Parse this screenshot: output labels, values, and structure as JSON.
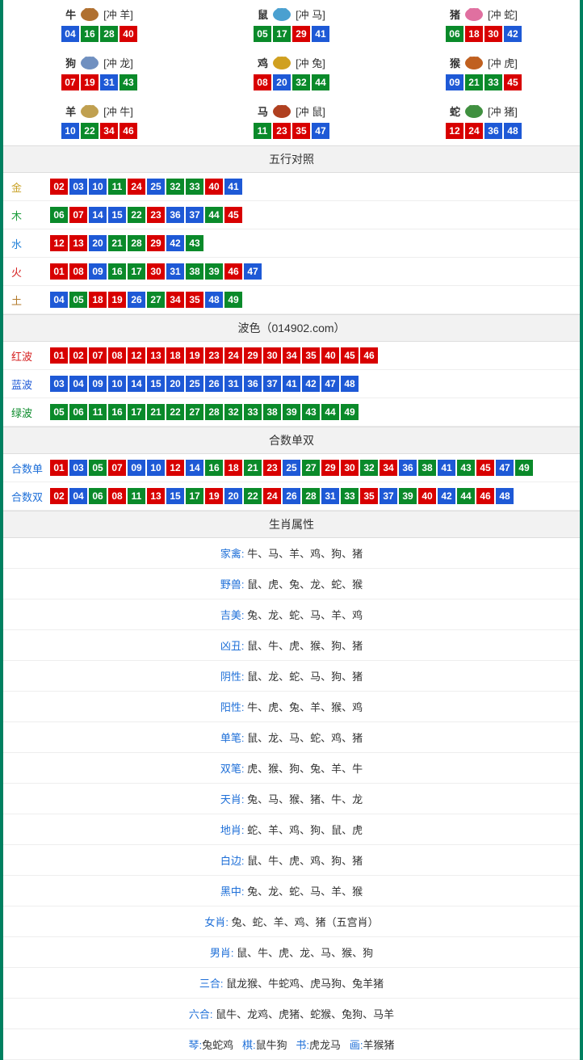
{
  "colors": {
    "red": "#d80000",
    "blue": "#1e59d6",
    "green": "#0a8a2a",
    "border": "#008060",
    "header_bg": "#f2f2f2",
    "link_blue": "#1e6fd8"
  },
  "number_color_map": {
    "red": [
      "01",
      "02",
      "07",
      "08",
      "12",
      "13",
      "18",
      "19",
      "23",
      "24",
      "29",
      "30",
      "34",
      "35",
      "40",
      "45",
      "46"
    ],
    "blue": [
      "03",
      "04",
      "09",
      "10",
      "14",
      "15",
      "20",
      "25",
      "26",
      "31",
      "36",
      "37",
      "41",
      "42",
      "47",
      "48"
    ],
    "green": [
      "05",
      "06",
      "11",
      "16",
      "17",
      "21",
      "22",
      "27",
      "28",
      "32",
      "33",
      "38",
      "39",
      "43",
      "44",
      "49"
    ]
  },
  "zodiac_icon_colors": {
    "牛": "#b07030",
    "鼠": "#4aa0d0",
    "猪": "#e070a0",
    "狗": "#7090c0",
    "鸡": "#d0a020",
    "猴": "#c06020",
    "羊": "#c0a050",
    "马": "#b04020",
    "蛇": "#409040"
  },
  "zodiac": [
    {
      "name": "牛",
      "clash": "[冲 羊]",
      "nums": [
        "04",
        "16",
        "28",
        "40"
      ]
    },
    {
      "name": "鼠",
      "clash": "[冲 马]",
      "nums": [
        "05",
        "17",
        "29",
        "41"
      ]
    },
    {
      "name": "猪",
      "clash": "[冲 蛇]",
      "nums": [
        "06",
        "18",
        "30",
        "42"
      ]
    },
    {
      "name": "狗",
      "clash": "[冲 龙]",
      "nums": [
        "07",
        "19",
        "31",
        "43"
      ]
    },
    {
      "name": "鸡",
      "clash": "[冲 兔]",
      "nums": [
        "08",
        "20",
        "32",
        "44"
      ]
    },
    {
      "name": "猴",
      "clash": "[冲 虎]",
      "nums": [
        "09",
        "21",
        "33",
        "45"
      ]
    },
    {
      "name": "羊",
      "clash": "[冲 牛]",
      "nums": [
        "10",
        "22",
        "34",
        "46"
      ]
    },
    {
      "name": "马",
      "clash": "[冲 鼠]",
      "nums": [
        "11",
        "23",
        "35",
        "47"
      ]
    },
    {
      "name": "蛇",
      "clash": "[冲 猪]",
      "nums": [
        "12",
        "24",
        "36",
        "48"
      ]
    }
  ],
  "wuxing_header": "五行对照",
  "wuxing_label_colors": {
    "金": "#c9a227",
    "木": "#1e9e3e",
    "水": "#1e7fd8",
    "火": "#d62020",
    "土": "#b37a2a"
  },
  "wuxing": [
    {
      "label": "金",
      "nums": [
        "02",
        "03",
        "10",
        "11",
        "24",
        "25",
        "32",
        "33",
        "40",
        "41"
      ]
    },
    {
      "label": "木",
      "nums": [
        "06",
        "07",
        "14",
        "15",
        "22",
        "23",
        "36",
        "37",
        "44",
        "45"
      ]
    },
    {
      "label": "水",
      "nums": [
        "12",
        "13",
        "20",
        "21",
        "28",
        "29",
        "42",
        "43"
      ]
    },
    {
      "label": "火",
      "nums": [
        "01",
        "08",
        "09",
        "16",
        "17",
        "30",
        "31",
        "38",
        "39",
        "46",
        "47"
      ]
    },
    {
      "label": "土",
      "nums": [
        "04",
        "05",
        "18",
        "19",
        "26",
        "27",
        "34",
        "35",
        "48",
        "49"
      ]
    }
  ],
  "bose_header": "波色（014902.com）",
  "bose_label_colors": {
    "红波": "#d62020",
    "蓝波": "#1e59d6",
    "绿波": "#0a8a2a"
  },
  "bose": [
    {
      "label": "红波",
      "nums": [
        "01",
        "02",
        "07",
        "08",
        "12",
        "13",
        "18",
        "19",
        "23",
        "24",
        "29",
        "30",
        "34",
        "35",
        "40",
        "45",
        "46"
      ]
    },
    {
      "label": "蓝波",
      "nums": [
        "03",
        "04",
        "09",
        "10",
        "14",
        "15",
        "20",
        "25",
        "26",
        "31",
        "36",
        "37",
        "41",
        "42",
        "47",
        "48"
      ]
    },
    {
      "label": "绿波",
      "nums": [
        "05",
        "06",
        "11",
        "16",
        "17",
        "21",
        "22",
        "27",
        "28",
        "32",
        "33",
        "38",
        "39",
        "43",
        "44",
        "49"
      ]
    }
  ],
  "heshu_header": "合数单双",
  "heshu_label_color": "#1e6fd8",
  "heshu": [
    {
      "label": "合数单",
      "nums": [
        "01",
        "03",
        "05",
        "07",
        "09",
        "10",
        "12",
        "14",
        "16",
        "18",
        "21",
        "23",
        "25",
        "27",
        "29",
        "30",
        "32",
        "34",
        "36",
        "38",
        "41",
        "43",
        "45",
        "47",
        "49"
      ]
    },
    {
      "label": "合数双",
      "nums": [
        "02",
        "04",
        "06",
        "08",
        "11",
        "13",
        "15",
        "17",
        "19",
        "20",
        "22",
        "24",
        "26",
        "28",
        "31",
        "33",
        "35",
        "37",
        "39",
        "40",
        "42",
        "44",
        "46",
        "48"
      ]
    }
  ],
  "attr_header": "生肖属性",
  "attrs": [
    {
      "label": "家禽:",
      "value": " 牛、马、羊、鸡、狗、猪"
    },
    {
      "label": "野兽:",
      "value": " 鼠、虎、兔、龙、蛇、猴"
    },
    {
      "label": "吉美:",
      "value": " 兔、龙、蛇、马、羊、鸡"
    },
    {
      "label": "凶丑:",
      "value": " 鼠、牛、虎、猴、狗、猪"
    },
    {
      "label": "阴性:",
      "value": " 鼠、龙、蛇、马、狗、猪"
    },
    {
      "label": "阳性:",
      "value": " 牛、虎、兔、羊、猴、鸡"
    },
    {
      "label": "单笔:",
      "value": " 鼠、龙、马、蛇、鸡、猪"
    },
    {
      "label": "双笔:",
      "value": " 虎、猴、狗、兔、羊、牛"
    },
    {
      "label": "天肖:",
      "value": " 兔、马、猴、猪、牛、龙"
    },
    {
      "label": "地肖:",
      "value": " 蛇、羊、鸡、狗、鼠、虎"
    },
    {
      "label": "白边:",
      "value": " 鼠、牛、虎、鸡、狗、猪"
    },
    {
      "label": "黑中:",
      "value": " 兔、龙、蛇、马、羊、猴"
    },
    {
      "label": "女肖:",
      "value": " 兔、蛇、羊、鸡、猪（五宫肖）"
    },
    {
      "label": "男肖:",
      "value": " 鼠、牛、虎、龙、马、猴、狗"
    },
    {
      "label": "三合:",
      "value": " 鼠龙猴、牛蛇鸡、虎马狗、兔羊猪"
    },
    {
      "label": "六合:",
      "value": " 鼠牛、龙鸡、虎猪、蛇猴、兔狗、马羊"
    }
  ],
  "footer_parts": [
    {
      "k": "琴:",
      "v": "兔蛇鸡"
    },
    {
      "k": "棋:",
      "v": "鼠牛狗"
    },
    {
      "k": "书:",
      "v": "虎龙马"
    },
    {
      "k": "画:",
      "v": "羊猴猪"
    }
  ]
}
